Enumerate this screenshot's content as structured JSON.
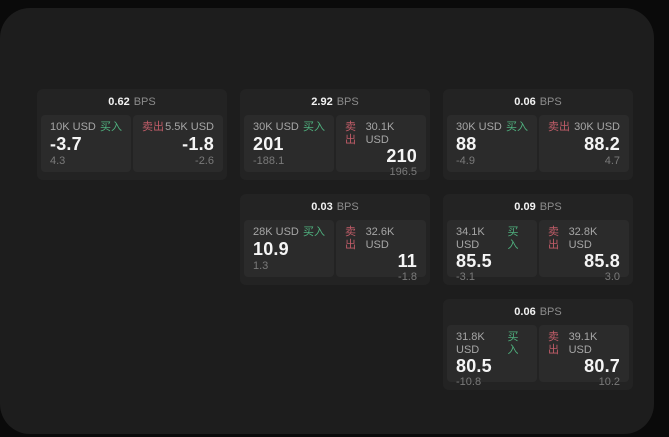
{
  "app": {
    "background": "#0a0a0a",
    "panel_background": "#1d1d1d",
    "card_background": "#232323",
    "tile_background": "#2b2b2b",
    "buy_color": "#4fb07e",
    "sell_color": "#c05c68"
  },
  "labels": {
    "bps": "BPS",
    "buy": "买入",
    "sell": "卖出"
  },
  "cards": [
    {
      "bps": "0.62",
      "buy": {
        "amount": "10K USD",
        "value": "-3.7",
        "sub": "4.3"
      },
      "sell": {
        "amount": "5.5K USD",
        "value": "-1.8",
        "sub": "-2.6"
      }
    },
    {
      "bps": "2.92",
      "buy": {
        "amount": "30K USD",
        "value": "201",
        "sub": "-188.1"
      },
      "sell": {
        "amount": "30.1K USD",
        "value": "210",
        "sub": "196.5"
      }
    },
    {
      "bps": "0.06",
      "buy": {
        "amount": "30K USD",
        "value": "88",
        "sub": "-4.9"
      },
      "sell": {
        "amount": "30K USD",
        "value": "88.2",
        "sub": "4.7"
      }
    },
    {
      "bps": "0.03",
      "buy": {
        "amount": "28K USD",
        "value": "10.9",
        "sub": "1.3"
      },
      "sell": {
        "amount": "32.6K USD",
        "value": "11",
        "sub": "-1.8"
      }
    },
    {
      "bps": "0.09",
      "buy": {
        "amount": "34.1K USD",
        "value": "85.5",
        "sub": "-3.1"
      },
      "sell": {
        "amount": "32.8K USD",
        "value": "85.8",
        "sub": "3.0"
      }
    },
    {
      "bps": "0.06",
      "buy": {
        "amount": "31.8K USD",
        "value": "80.5",
        "sub": "-10.8"
      },
      "sell": {
        "amount": "39.1K USD",
        "value": "80.7",
        "sub": "10.2"
      }
    }
  ]
}
